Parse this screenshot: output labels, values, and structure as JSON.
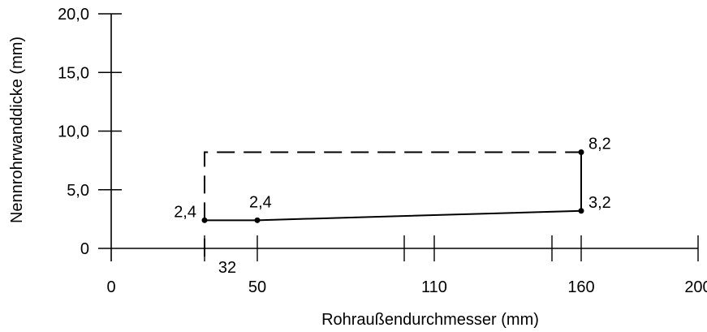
{
  "chart_data": {
    "type": "line",
    "xlabel": "Rohraußendurchmesser (mm)",
    "ylabel": "Nennrohrwanddicke (mm)",
    "xlim": [
      0,
      200
    ],
    "ylim": [
      0,
      20
    ],
    "grid": false,
    "x_ticks": [
      0,
      32,
      50,
      100,
      110,
      150,
      160,
      200
    ],
    "x_tick_labels": [
      {
        "value": 0,
        "label": "0"
      },
      {
        "value": 32,
        "label": "32"
      },
      {
        "value": 50,
        "label": "50"
      },
      {
        "value": 110,
        "label": "110"
      },
      {
        "value": 160,
        "label": "160"
      },
      {
        "value": 200,
        "label": "200"
      }
    ],
    "y_ticks": [
      {
        "value": 0,
        "label": "0"
      },
      {
        "value": 5,
        "label": "5,0"
      },
      {
        "value": 10,
        "label": "10,0"
      },
      {
        "value": 15,
        "label": "15,0"
      },
      {
        "value": 20,
        "label": "20,0"
      }
    ],
    "series": [
      {
        "style": "solid",
        "x": [
          32,
          50,
          160,
          160
        ],
        "y": [
          2.4,
          2.4,
          3.2,
          8.2
        ]
      },
      {
        "style": "dashed",
        "x": [
          32,
          32,
          160
        ],
        "y": [
          2.4,
          8.2,
          8.2
        ]
      }
    ],
    "points": [
      {
        "x": 32,
        "y": 2.4,
        "label": "2,4",
        "anchor": "left"
      },
      {
        "x": 50,
        "y": 2.4,
        "label": "2,4",
        "anchor": "above"
      },
      {
        "x": 160,
        "y": 3.2,
        "label": "3,2",
        "anchor": "right"
      },
      {
        "x": 160,
        "y": 8.2,
        "label": "8,2",
        "anchor": "right"
      }
    ]
  }
}
